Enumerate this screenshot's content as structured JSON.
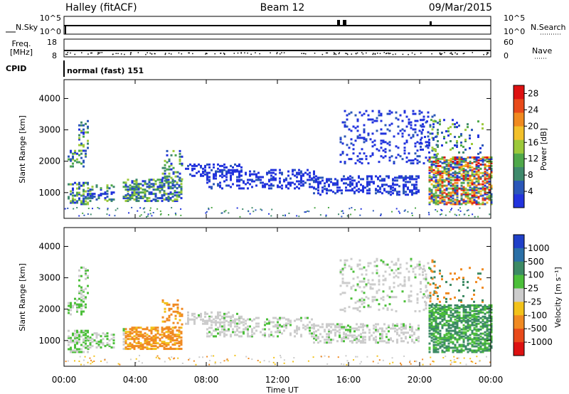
{
  "header": {
    "station": "Halley (fitACF)",
    "beam": "Beam 12",
    "date": "09/Mar/2015"
  },
  "sky_panel": {
    "left_label": "N.Sky",
    "right_label": "N.Search",
    "left_ticks": [
      "10^5",
      "10^0"
    ],
    "right_ticks": [
      "10^5",
      "10^0"
    ]
  },
  "freq_panel": {
    "left_label_line1": "Freq.",
    "left_label_line2": "[MHz]",
    "right_label": "Nave",
    "left_ticks": [
      "18",
      "8"
    ],
    "right_ticks": [
      "60",
      "0"
    ]
  },
  "cpid": {
    "label": "CPID",
    "value": "normal (fast) 151"
  },
  "x_axis": {
    "label": "Time UT",
    "ticks": [
      "00:00",
      "04:00",
      "08:00",
      "12:00",
      "16:00",
      "20:00",
      "00:00"
    ]
  },
  "chart_data": [
    {
      "type": "heatmap",
      "name": "power",
      "ylabel": "Slant Range [km]",
      "yticks": [
        "1000",
        "2000",
        "3000",
        "4000"
      ],
      "ylim": [
        180,
        4600
      ],
      "xlim_hours": [
        0,
        24
      ],
      "colorbar": {
        "label": "Power [dB]",
        "ticks": [
          "4",
          "8",
          "12",
          "16",
          "20",
          "24",
          "28"
        ],
        "range": [
          0,
          30
        ]
      },
      "colors": [
        "#2233dd",
        "#2b57b8",
        "#3f8a6c",
        "#4fa84a",
        "#9cc93a",
        "#f2c02a",
        "#f08a20",
        "#e84a1a",
        "#dd1111"
      ]
    },
    {
      "type": "heatmap",
      "name": "velocity",
      "ylabel": "Slant Range [km]",
      "yticks": [
        "1000",
        "2000",
        "3000",
        "4000"
      ],
      "ylim": [
        180,
        4600
      ],
      "xlim_hours": [
        0,
        24
      ],
      "colorbar": {
        "label": "Velocity [m s⁻¹]",
        "ticks": [
          "1000",
          "500",
          "100",
          "25",
          "-25",
          "-100",
          "-500",
          "-1000"
        ]
      },
      "colors": [
        "#2040c8",
        "#2a6fa6",
        "#3c8a64",
        "#4cbf3a",
        "#cccccc",
        "#f2c21a",
        "#f08a22",
        "#e84a1a",
        "#dd1111"
      ]
    }
  ]
}
